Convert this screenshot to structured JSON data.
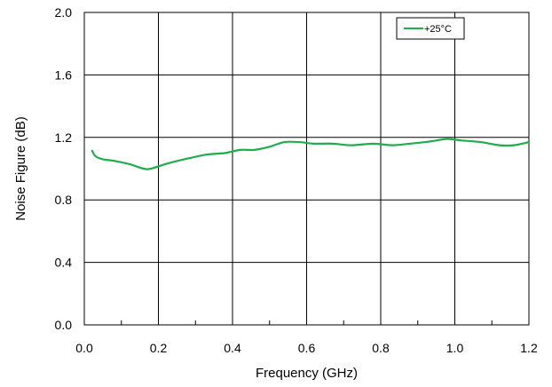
{
  "chart_data": {
    "type": "line",
    "title": "",
    "xlabel": "Frequency (GHz)",
    "ylabel": "Noise Figure (dB)",
    "xlim": [
      0.0,
      1.2
    ],
    "ylim": [
      0.0,
      2.0
    ],
    "xticks": [
      "0.0",
      "0.2",
      "0.4",
      "0.6",
      "0.8",
      "1.0",
      "1.2"
    ],
    "yticks": [
      "0.0",
      "0.4",
      "0.8",
      "1.2",
      "1.6",
      "2.0"
    ],
    "grid": true,
    "legend_position": "top-right",
    "series": [
      {
        "name": "+25°C",
        "color": "#1fad4e",
        "x": [
          0.02,
          0.03,
          0.05,
          0.08,
          0.12,
          0.16,
          0.18,
          0.22,
          0.27,
          0.33,
          0.38,
          0.42,
          0.46,
          0.5,
          0.54,
          0.58,
          0.62,
          0.67,
          0.72,
          0.78,
          0.83,
          0.88,
          0.92,
          0.95,
          0.98,
          1.02,
          1.07,
          1.12,
          1.16,
          1.2
        ],
        "y": [
          1.12,
          1.08,
          1.06,
          1.05,
          1.03,
          1.0,
          1.0,
          1.03,
          1.06,
          1.09,
          1.1,
          1.12,
          1.12,
          1.14,
          1.17,
          1.17,
          1.16,
          1.16,
          1.15,
          1.16,
          1.15,
          1.16,
          1.17,
          1.18,
          1.19,
          1.18,
          1.17,
          1.15,
          1.15,
          1.17
        ]
      }
    ]
  }
}
